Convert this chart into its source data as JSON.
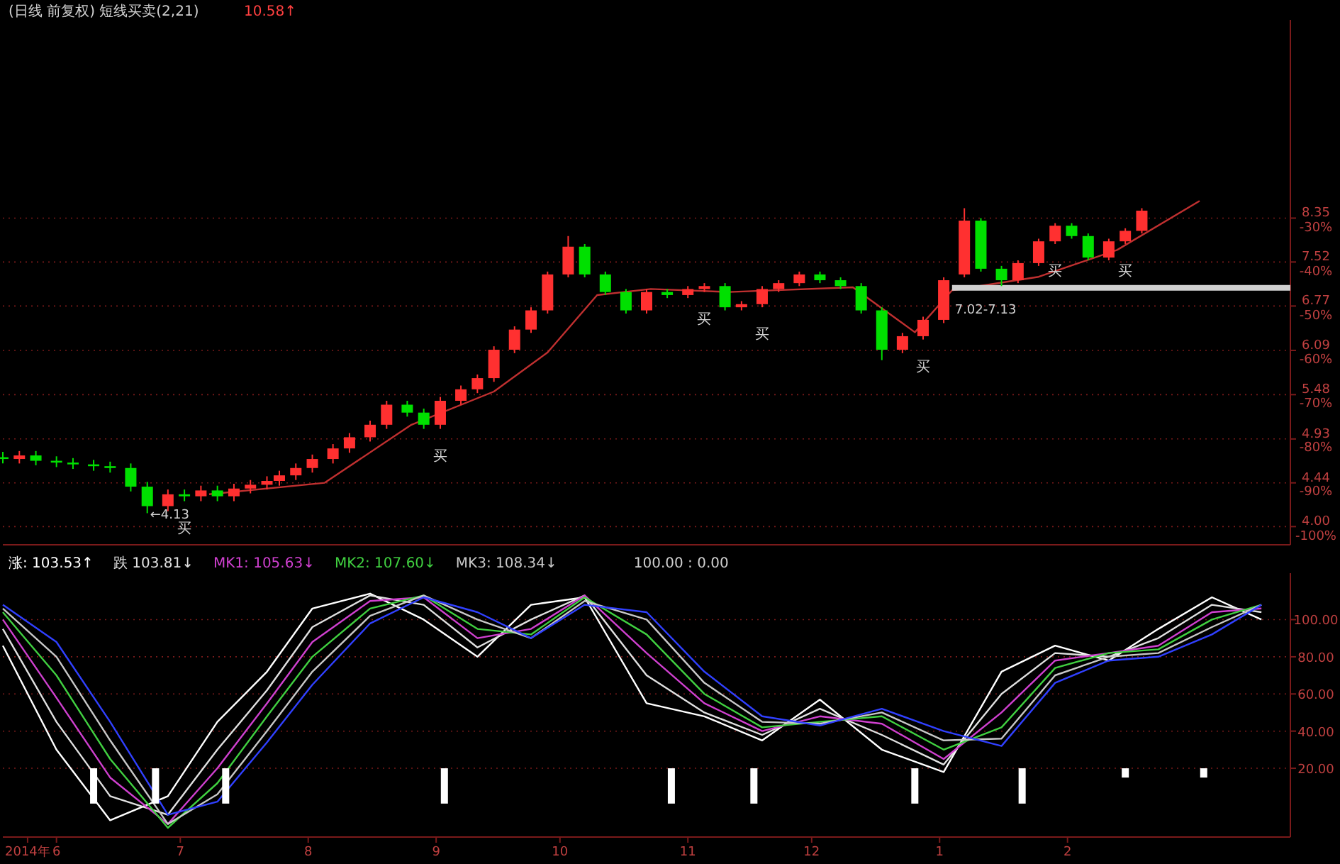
{
  "chart_data": [
    {
      "type": "candlestick",
      "title": "(日线 前复权) 短线买卖(2,21)",
      "subtitle": "10.58↑",
      "x": [
        "2014-05-19",
        "2014-05-23",
        "2014-05-27",
        "2014-06-01",
        "2014-06-05",
        "2014-06-10",
        "2014-06-14",
        "2014-06-19",
        "2014-06-23",
        "2014-06-28",
        "2014-07-02",
        "2014-07-06",
        "2014-07-10",
        "2014-07-14",
        "2014-07-18",
        "2014-07-22",
        "2014-07-25",
        "2014-07-29",
        "2014-08-02",
        "2014-08-07",
        "2014-08-11",
        "2014-08-16",
        "2014-08-20",
        "2014-08-25",
        "2014-08-29",
        "2014-09-02",
        "2014-09-07",
        "2014-09-11",
        "2014-09-15",
        "2014-09-20",
        "2014-09-24",
        "2014-09-28",
        "2014-10-03",
        "2014-10-07",
        "2014-10-12",
        "2014-10-17",
        "2014-10-22",
        "2014-10-27",
        "2014-11-01",
        "2014-11-05",
        "2014-11-10",
        "2014-11-14",
        "2014-11-19",
        "2014-11-23",
        "2014-11-28",
        "2014-12-03",
        "2014-12-08",
        "2014-12-13",
        "2014-12-18",
        "2014-12-23",
        "2014-12-28",
        "2015-01-02",
        "2015-01-07",
        "2015-01-11",
        "2015-01-16",
        "2015-01-20",
        "2015-01-25",
        "2015-01-29",
        "2015-02-02",
        "2015-02-06",
        "2015-02-11",
        "2015-02-15",
        "2015-02-19"
      ],
      "ohlc": [
        [
          4.72,
          4.78,
          4.65,
          4.7
        ],
        [
          4.7,
          4.79,
          4.65,
          4.74
        ],
        [
          4.74,
          4.79,
          4.63,
          4.68
        ],
        [
          4.68,
          4.73,
          4.61,
          4.66
        ],
        [
          4.66,
          4.71,
          4.59,
          4.64
        ],
        [
          4.64,
          4.69,
          4.57,
          4.62
        ],
        [
          4.62,
          4.67,
          4.55,
          4.6
        ],
        [
          4.6,
          4.65,
          4.35,
          4.4
        ],
        [
          4.4,
          4.45,
          4.13,
          4.2
        ],
        [
          4.2,
          4.37,
          4.15,
          4.32
        ],
        [
          4.32,
          4.37,
          4.25,
          4.3
        ],
        [
          4.3,
          4.41,
          4.25,
          4.36
        ],
        [
          4.36,
          4.41,
          4.25,
          4.3
        ],
        [
          4.3,
          4.43,
          4.25,
          4.38
        ],
        [
          4.38,
          4.47,
          4.33,
          4.42
        ],
        [
          4.42,
          4.51,
          4.37,
          4.46
        ],
        [
          4.46,
          4.57,
          4.41,
          4.52
        ],
        [
          4.52,
          4.65,
          4.47,
          4.6
        ],
        [
          4.6,
          4.75,
          4.55,
          4.7
        ],
        [
          4.7,
          4.87,
          4.65,
          4.82
        ],
        [
          4.82,
          5.0,
          4.77,
          4.95
        ],
        [
          4.95,
          5.15,
          4.9,
          5.1
        ],
        [
          5.1,
          5.4,
          5.05,
          5.35
        ],
        [
          5.35,
          5.4,
          5.2,
          5.25
        ],
        [
          5.25,
          5.3,
          5.05,
          5.1
        ],
        [
          5.1,
          5.45,
          5.05,
          5.4
        ],
        [
          5.4,
          5.6,
          5.35,
          5.55
        ],
        [
          5.55,
          5.75,
          5.5,
          5.7
        ],
        [
          5.7,
          6.15,
          5.65,
          6.1
        ],
        [
          6.1,
          6.45,
          6.05,
          6.4
        ],
        [
          6.4,
          6.75,
          6.35,
          6.7
        ],
        [
          6.7,
          7.35,
          6.65,
          7.3
        ],
        [
          7.3,
          8.0,
          7.25,
          7.8
        ],
        [
          7.8,
          7.85,
          7.25,
          7.3
        ],
        [
          7.3,
          7.35,
          6.95,
          7.0
        ],
        [
          7.0,
          7.05,
          6.65,
          6.7
        ],
        [
          6.7,
          7.05,
          6.65,
          7.0
        ],
        [
          7.0,
          7.05,
          6.9,
          6.95
        ],
        [
          6.95,
          7.1,
          6.9,
          7.05
        ],
        [
          7.05,
          7.15,
          7.0,
          7.1
        ],
        [
          7.1,
          7.15,
          6.7,
          6.75
        ],
        [
          6.75,
          6.85,
          6.7,
          6.8
        ],
        [
          6.8,
          7.1,
          6.75,
          7.05
        ],
        [
          7.05,
          7.2,
          7.0,
          7.15
        ],
        [
          7.15,
          7.35,
          7.1,
          7.3
        ],
        [
          7.3,
          7.35,
          7.15,
          7.2
        ],
        [
          7.2,
          7.25,
          7.05,
          7.1
        ],
        [
          7.1,
          7.15,
          6.65,
          6.7
        ],
        [
          6.7,
          6.75,
          5.95,
          6.1
        ],
        [
          6.1,
          6.35,
          6.05,
          6.3
        ],
        [
          6.3,
          6.6,
          6.25,
          6.55
        ],
        [
          6.55,
          7.25,
          6.5,
          7.2
        ],
        [
          7.3,
          8.55,
          7.25,
          8.3
        ],
        [
          8.3,
          8.35,
          7.35,
          7.4
        ],
        [
          7.4,
          7.45,
          7.1,
          7.2
        ],
        [
          7.2,
          7.55,
          7.15,
          7.5
        ],
        [
          7.5,
          7.95,
          7.45,
          7.9
        ],
        [
          7.9,
          8.25,
          7.85,
          8.2
        ],
        [
          8.2,
          8.25,
          7.95,
          8.0
        ],
        [
          8.0,
          8.05,
          7.55,
          7.6
        ],
        [
          7.6,
          7.95,
          7.55,
          7.9
        ],
        [
          7.9,
          8.15,
          7.85,
          8.1
        ],
        [
          8.1,
          8.55,
          8.05,
          8.5
        ]
      ],
      "colors": [
        "#00e000",
        "#ff3030",
        "#00e000",
        "#00e000",
        "#00e000",
        "#00e000",
        "#00e000",
        "#00e000",
        "#00e000",
        "#ff3030",
        "#00e000",
        "#ff3030",
        "#00e000",
        "#ff3030",
        "#ff3030",
        "#ff3030",
        "#ff3030",
        "#ff3030",
        "#ff3030",
        "#ff3030",
        "#ff3030",
        "#ff3030",
        "#ff3030",
        "#00e000",
        "#00e000",
        "#ff3030",
        "#ff3030",
        "#ff3030",
        "#ff3030",
        "#ff3030",
        "#ff3030",
        "#ff3030",
        "#ff3030",
        "#00e000",
        "#00e000",
        "#00e000",
        "#ff3030",
        "#00e000",
        "#ff3030",
        "#ff3030",
        "#00e000",
        "#ff3030",
        "#ff3030",
        "#ff3030",
        "#ff3030",
        "#00e000",
        "#00e000",
        "#00e000",
        "#00e000",
        "#ff3030",
        "#ff3030",
        "#ff3030",
        "#ff3030",
        "#00e000",
        "#00e000",
        "#ff3030",
        "#ff3030",
        "#ff3030",
        "#00e000",
        "#00e000",
        "#ff3030",
        "#ff3030",
        "#ff3030"
      ],
      "series": [
        {
          "type": "line",
          "color": "#c03030",
          "x": [
            "2014-07-08",
            "2014-08-05",
            "2014-08-26",
            "2014-09-15",
            "2014-09-28",
            "2014-10-10",
            "2014-10-23",
            "2014-11-11",
            "2014-12-11",
            "2014-12-26",
            "2015-01-04",
            "2015-01-25",
            "2015-02-13",
            "2015-03-05"
          ],
          "values": [
            4.32,
            4.44,
            5.1,
            5.52,
            6.06,
            6.95,
            7.05,
            7.0,
            7.08,
            6.36,
            7.03,
            7.26,
            7.74,
            8.7
          ]
        },
        {
          "type": "line",
          "color": "#d0d0d0",
          "x": [
            "2015-01-04",
            "2015-03-27"
          ],
          "values": [
            7.07,
            7.07
          ]
        }
      ],
      "xlim": [
        "2014-05-19",
        "2015-03-27"
      ],
      "ylim": [
        3.83,
        13.4
      ],
      "log": "y",
      "yticks": [
        {
          "value": 4.0,
          "label": "4.00"
        },
        {
          "value": 4.44,
          "label": "4.44"
        },
        {
          "value": 4.93,
          "label": "4.93"
        },
        {
          "value": 5.48,
          "label": "5.48"
        },
        {
          "value": 6.09,
          "label": "6.09"
        },
        {
          "value": 6.77,
          "label": "6.77"
        },
        {
          "value": 7.52,
          "label": "7.52"
        },
        {
          "value": 8.35,
          "label": "8.35"
        }
      ],
      "y2lim": [
        -104.1,
        15.0
      ],
      "y2ticks": [
        {
          "value": -100,
          "label": "-100%"
        },
        {
          "value": -90,
          "label": "-90%"
        },
        {
          "value": -80,
          "label": "-80%"
        },
        {
          "value": -70,
          "label": "-70%"
        },
        {
          "value": -60,
          "label": "-60%"
        },
        {
          "value": -50,
          "label": "-50%"
        },
        {
          "value": -40,
          "label": "-40%"
        },
        {
          "value": -30,
          "label": "-30%"
        }
      ],
      "grid": "y",
      "tick_labels": "y",
      "annotations": [
        {
          "text": "←4.13",
          "x": "2014-06-23",
          "y": 4.13
        },
        {
          "text": "7.02-7.13",
          "x": "2015-01-04",
          "y": 7.07
        },
        {
          "text": "买",
          "x": "2014-07-02",
          "y": 4.25
        },
        {
          "text": "买",
          "x": "2014-09-02",
          "y": 5.05
        },
        {
          "text": "买",
          "x": "2014-11-05",
          "y": 7.0
        },
        {
          "text": "买",
          "x": "2014-11-19",
          "y": 6.75
        },
        {
          "text": "买",
          "x": "2014-12-28",
          "y": 6.25
        },
        {
          "text": "买",
          "x": "2015-01-29",
          "y": 7.85
        },
        {
          "text": "买",
          "x": "2015-02-15",
          "y": 7.85
        }
      ]
    },
    {
      "type": "line",
      "x": [
        "2014-05-19",
        "2014-06-01",
        "2014-06-14",
        "2014-06-28",
        "2014-07-10",
        "2014-07-22",
        "2014-08-02",
        "2014-08-16",
        "2014-08-29",
        "2014-09-11",
        "2014-09-24",
        "2014-10-07",
        "2014-10-22",
        "2014-11-05",
        "2014-11-19",
        "2014-12-03",
        "2014-12-18",
        "2015-01-02",
        "2015-01-16",
        "2015-01-29",
        "2015-02-11",
        "2015-02-23",
        "2015-03-08",
        "2015-03-20"
      ],
      "series": [
        {
          "name": "涨: 103.53↑",
          "color": "#ffffff",
          "values": [
            86,
            30,
            -8,
            5,
            45,
            72,
            106,
            114,
            100,
            80,
            108,
            112,
            55,
            48,
            35,
            57,
            30,
            18,
            72,
            86,
            78,
            95,
            112,
            100
          ]
        },
        {
          "name": "跌 103.81↓",
          "color": "#e0e0e0",
          "values": [
            95,
            45,
            5,
            -5,
            30,
            62,
            96,
            113,
            108,
            85,
            100,
            113,
            70,
            50,
            38,
            52,
            38,
            22,
            60,
            82,
            80,
            90,
            108,
            104
          ]
        },
        {
          "name": "MK1: 105.63↓",
          "color": "#d040d0",
          "values": [
            100,
            58,
            15,
            -10,
            20,
            55,
            88,
            110,
            112,
            90,
            95,
            113,
            82,
            55,
            40,
            48,
            44,
            25,
            50,
            78,
            82,
            86,
            104,
            106
          ]
        },
        {
          "name": "MK2: 107.60↓",
          "color": "#40d040",
          "values": [
            104,
            70,
            25,
            -12,
            12,
            48,
            80,
            106,
            113,
            95,
            92,
            112,
            92,
            60,
            42,
            45,
            48,
            30,
            42,
            74,
            82,
            84,
            100,
            108
          ]
        },
        {
          "name": "MK3: 108.34↓",
          "color": "#c8c8c8",
          "values": [
            106,
            80,
            35,
            -10,
            6,
            40,
            72,
            102,
            113,
            100,
            90,
            110,
            100,
            66,
            45,
            44,
            50,
            35,
            36,
            70,
            80,
            82,
            96,
            108
          ]
        },
        {
          "color": "#3040ff",
          "values": [
            108,
            88,
            45,
            -5,
            2,
            34,
            65,
            98,
            112,
            104,
            90,
            108,
            104,
            72,
            48,
            43,
            52,
            40,
            32,
            66,
            78,
            80,
            92,
            108
          ]
        },
        {
          "type": "bar",
          "color": "#ffffff",
          "x": [
            "2014-06-10",
            "2014-06-25",
            "2014-07-12",
            "2014-09-03",
            "2014-10-28",
            "2014-11-17",
            "2014-12-26",
            "2015-01-21",
            "2015-02-15",
            "2015-03-06"
          ],
          "base": [
            1,
            1,
            1,
            1,
            1,
            1,
            1,
            1,
            15,
            15
          ],
          "values": [
            19,
            19,
            19,
            19,
            19,
            19,
            19,
            19,
            5,
            5
          ]
        }
      ],
      "xlim": [
        "2014-05-19",
        "2015-03-27"
      ],
      "ylim": [
        -17,
        125
      ],
      "yticks": [
        {
          "value": 20,
          "label": "20.00"
        },
        {
          "value": 40,
          "label": "40.00"
        },
        {
          "value": 60,
          "label": "60.00"
        },
        {
          "value": 80,
          "label": "80.00"
        },
        {
          "value": 100,
          "label": "100.00"
        }
      ],
      "xticks": [
        {
          "value": "2014-05-25",
          "label": "2014年"
        },
        {
          "value": "2014-06",
          "label": "6"
        },
        {
          "value": "2014-07",
          "label": "7"
        },
        {
          "value": "2014-08",
          "label": "8"
        },
        {
          "value": "2014-09",
          "label": "9"
        },
        {
          "value": "2014-10",
          "label": "10"
        },
        {
          "value": "2014-11",
          "label": "11"
        },
        {
          "value": "2014-12",
          "label": "12"
        },
        {
          "value": "2015-01",
          "label": "1"
        },
        {
          "value": "2015-02",
          "label": "2"
        }
      ],
      "grid": "y",
      "legend": "top",
      "annotations": [
        "100.00 : 0.00"
      ]
    }
  ]
}
